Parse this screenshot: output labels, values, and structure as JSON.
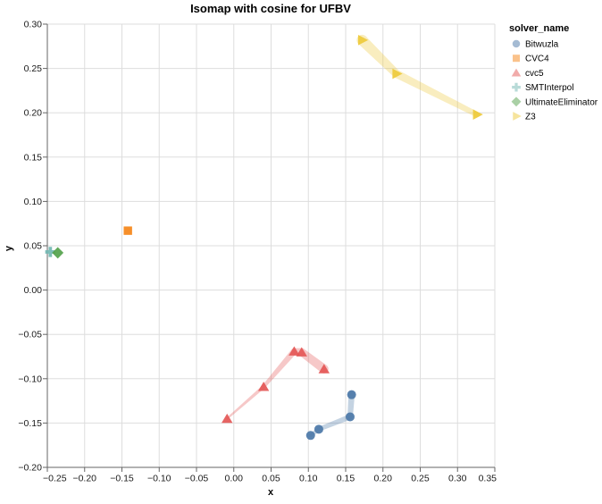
{
  "chart_data": {
    "type": "scatter",
    "title": "Isomap with cosine for UFBV",
    "xlabel": "x",
    "ylabel": "y",
    "legend_title": "solver_name",
    "legend_position": "right",
    "grid": true,
    "xlim": [
      -0.25,
      0.35
    ],
    "ylim": [
      -0.2,
      0.3
    ],
    "x_ticks": [
      {
        "value": -0.25,
        "label": "−0.25"
      },
      {
        "value": -0.2,
        "label": "−0.20"
      },
      {
        "value": -0.15,
        "label": "−0.15"
      },
      {
        "value": -0.1,
        "label": "−0.10"
      },
      {
        "value": -0.05,
        "label": "−0.05"
      },
      {
        "value": 0.0,
        "label": "0.00"
      },
      {
        "value": 0.05,
        "label": "0.05"
      },
      {
        "value": 0.1,
        "label": "0.10"
      },
      {
        "value": 0.15,
        "label": "0.15"
      },
      {
        "value": 0.2,
        "label": "0.20"
      },
      {
        "value": 0.25,
        "label": "0.25"
      },
      {
        "value": 0.3,
        "label": "0.30"
      },
      {
        "value": 0.35,
        "label": "0.35"
      }
    ],
    "y_ticks": [
      {
        "value": 0.3,
        "label": "0.30"
      },
      {
        "value": 0.25,
        "label": "0.25"
      },
      {
        "value": 0.2,
        "label": "0.20"
      },
      {
        "value": 0.15,
        "label": "0.15"
      },
      {
        "value": 0.1,
        "label": "0.10"
      },
      {
        "value": 0.05,
        "label": "0.05"
      },
      {
        "value": 0.0,
        "label": "0.00"
      },
      {
        "value": -0.05,
        "label": "−0.05"
      },
      {
        "value": -0.1,
        "label": "−0.10"
      },
      {
        "value": -0.15,
        "label": "−0.15"
      },
      {
        "value": -0.2,
        "label": "−0.20"
      }
    ],
    "series": [
      {
        "name": "Bitwuzla",
        "shape": "circle",
        "color": "#4c78a8",
        "points": [
          [
            0.103,
            -0.164
          ],
          [
            0.114,
            -0.157
          ],
          [
            0.156,
            -0.143
          ],
          [
            0.158,
            -0.118
          ]
        ],
        "trail_width": [
          4,
          5,
          6,
          7
        ]
      },
      {
        "name": "CVC4",
        "shape": "square",
        "color": "#f58518",
        "points": [
          [
            -0.142,
            0.067
          ]
        ],
        "trail_width": [
          0
        ]
      },
      {
        "name": "cvc5",
        "shape": "triangle-up",
        "color": "#e45756",
        "points": [
          [
            -0.009,
            -0.145
          ],
          [
            0.04,
            -0.109
          ],
          [
            0.081,
            -0.069
          ],
          [
            0.091,
            -0.07
          ],
          [
            0.121,
            -0.089
          ]
        ],
        "trail_width": [
          2,
          4,
          7,
          9,
          10
        ]
      },
      {
        "name": "SMTInterpol",
        "shape": "cross",
        "color": "#72b7b2",
        "points": [
          [
            -0.246,
            0.043
          ]
        ],
        "trail_width": [
          0
        ]
      },
      {
        "name": "UltimateEliminator",
        "shape": "diamond",
        "color": "#54a24b",
        "points": [
          [
            -0.236,
            0.042
          ]
        ],
        "trail_width": [
          0
        ]
      },
      {
        "name": "Z3",
        "shape": "triangle-right",
        "color": "#eeca3b",
        "points": [
          [
            0.172,
            0.282
          ],
          [
            0.218,
            0.244
          ],
          [
            0.326,
            0.198
          ]
        ],
        "trail_width": [
          12,
          9,
          6
        ]
      }
    ],
    "colors": {
      "background": "#ffffff",
      "grid": "#dddddd",
      "axis": "#666666",
      "text": "#000000"
    }
  }
}
